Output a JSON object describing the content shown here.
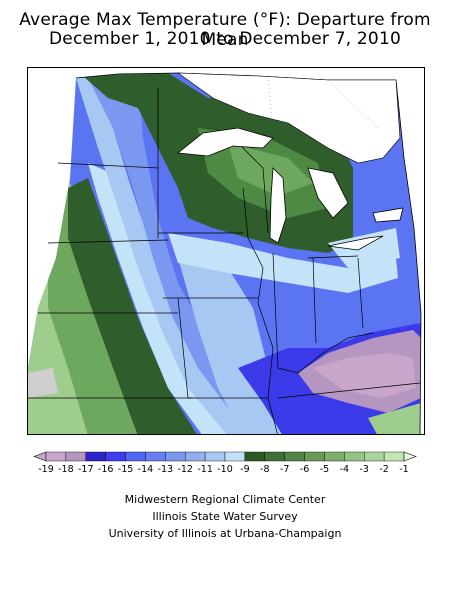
{
  "title_line1": "Average Max Temperature (°F): Departure from Mean",
  "title_line2": "December 1, 2010 to December 7, 2010",
  "legend": {
    "labels": [
      "-19",
      "-18",
      "-17",
      "-16",
      "-15",
      "-14",
      "-13",
      "-12",
      "-11",
      "-10",
      "-9",
      "-8",
      "-7",
      "-6",
      "-5",
      "-4",
      "-3",
      "-2",
      "-1"
    ],
    "colors": [
      "#c8a6cc",
      "#b596c0",
      "#2f24c8",
      "#3e3ef0",
      "#5066f5",
      "#6680f3",
      "#7b98f1",
      "#91afef",
      "#a6c8f2",
      "#c1e1f8",
      "#2a5a28",
      "#3f6f37",
      "#528648",
      "#679a58",
      "#7cb06b",
      "#95c585",
      "#aad59d",
      "#c2e5b5"
    ]
  },
  "credits": {
    "line1": "Midwestern Regional Climate Center",
    "line2": "Illinois State Water Survey",
    "line3": "University of Illinois at Urbana-Champaign"
  },
  "map": {
    "colors": {
      "dark_green": "#2f5d2b",
      "mid_green": "#4f8a45",
      "green": "#6ea85f",
      "light_green": "#9fcd8e",
      "pale_green": "#bfe5b0",
      "pale_blue": "#c4e2f8",
      "light_blue": "#a6c8f2",
      "blue": "#7b98f1",
      "mid_blue": "#5a74f2",
      "deep_blue": "#3b3ae8",
      "purple": "#b596c0",
      "grey": "#cfcfcf"
    }
  }
}
